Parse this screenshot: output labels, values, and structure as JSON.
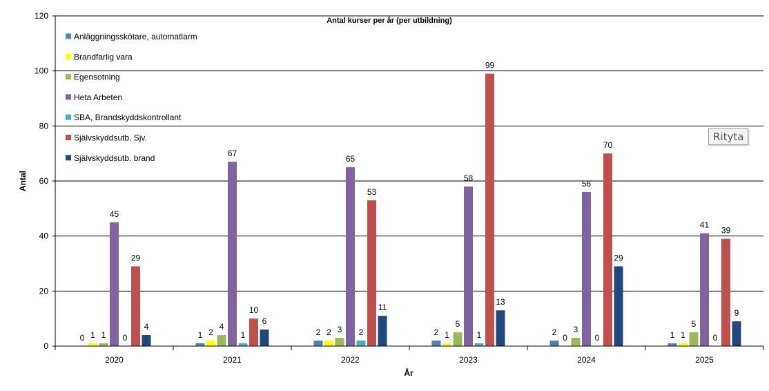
{
  "tooltip": "Rityta",
  "chart_data": {
    "type": "bar",
    "title": "Antal kurser per år (per utbildning)",
    "xlabel": "År",
    "ylabel": "Antal",
    "ylim": [
      0,
      120
    ],
    "yticks": [
      0,
      20,
      40,
      60,
      80,
      100,
      120
    ],
    "grid": true,
    "legend": "top-left",
    "categories": [
      "2020",
      "2021",
      "2022",
      "2023",
      "2024",
      "2025"
    ],
    "series": [
      {
        "name": "Anläggningsskötare, automatlarm",
        "color": "#4f81bd",
        "values": [
          0,
          1,
          2,
          2,
          2,
          1
        ]
      },
      {
        "name": "Brandfarlig vara",
        "color": "#ffff00",
        "values": [
          1,
          2,
          2,
          1,
          0,
          1
        ]
      },
      {
        "name": "Egensotning",
        "color": "#9bbb59",
        "values": [
          1,
          4,
          3,
          5,
          3,
          5
        ]
      },
      {
        "name": "Heta Arbeten",
        "color": "#8064a2",
        "values": [
          45,
          67,
          65,
          58,
          56,
          41
        ]
      },
      {
        "name": "SBA, Brandskyddskontrollant",
        "color": "#4bacc6",
        "values": [
          0,
          1,
          2,
          1,
          0,
          0
        ]
      },
      {
        "name": "Självskyddsutb. Sjv.",
        "color": "#c0504d",
        "values": [
          29,
          10,
          53,
          99,
          70,
          39
        ]
      },
      {
        "name": "Självskyddsutb. brand",
        "color": "#1f497d",
        "values": [
          4,
          6,
          11,
          13,
          29,
          9
        ]
      }
    ]
  }
}
